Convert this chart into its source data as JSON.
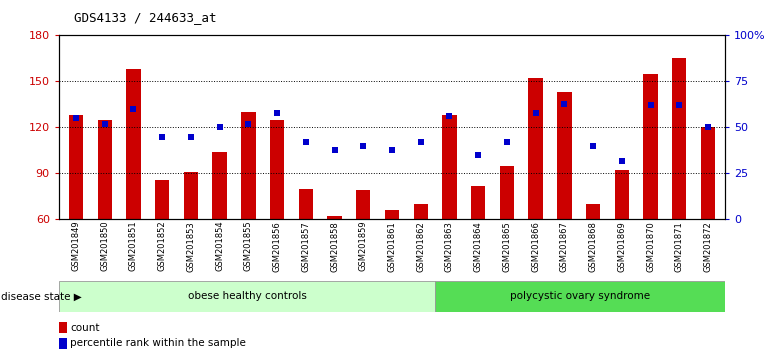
{
  "title": "GDS4133 / 244633_at",
  "samples": [
    "GSM201849",
    "GSM201850",
    "GSM201851",
    "GSM201852",
    "GSM201853",
    "GSM201854",
    "GSM201855",
    "GSM201856",
    "GSM201857",
    "GSM201858",
    "GSM201859",
    "GSM201861",
    "GSM201862",
    "GSM201863",
    "GSM201864",
    "GSM201865",
    "GSM201866",
    "GSM201867",
    "GSM201868",
    "GSM201869",
    "GSM201870",
    "GSM201871",
    "GSM201872"
  ],
  "counts": [
    128,
    125,
    158,
    86,
    91,
    104,
    130,
    125,
    80,
    62,
    79,
    66,
    70,
    128,
    82,
    95,
    152,
    143,
    70,
    92,
    155,
    165,
    120
  ],
  "percentiles": [
    55,
    52,
    60,
    45,
    45,
    50,
    52,
    58,
    42,
    38,
    40,
    38,
    42,
    56,
    35,
    42,
    58,
    63,
    40,
    32,
    62,
    62,
    50
  ],
  "group1_label": "obese healthy controls",
  "group2_label": "polycystic ovary syndrome",
  "group1_count": 13,
  "bar_color": "#cc0000",
  "point_color": "#0000cc",
  "bar_bottom": 60,
  "ylim_left": [
    60,
    180
  ],
  "ylim_right": [
    0,
    100
  ],
  "yticks_left": [
    60,
    90,
    120,
    150,
    180
  ],
  "yticks_right": [
    0,
    25,
    50,
    75,
    100
  ],
  "ytick_labels_right": [
    "0",
    "25",
    "50",
    "75",
    "100%"
  ],
  "legend_count_label": "count",
  "legend_pct_label": "percentile rank within the sample",
  "group_bg_light": "#ccffcc",
  "group_bg_green": "#55dd55",
  "disease_state_label": "disease state"
}
